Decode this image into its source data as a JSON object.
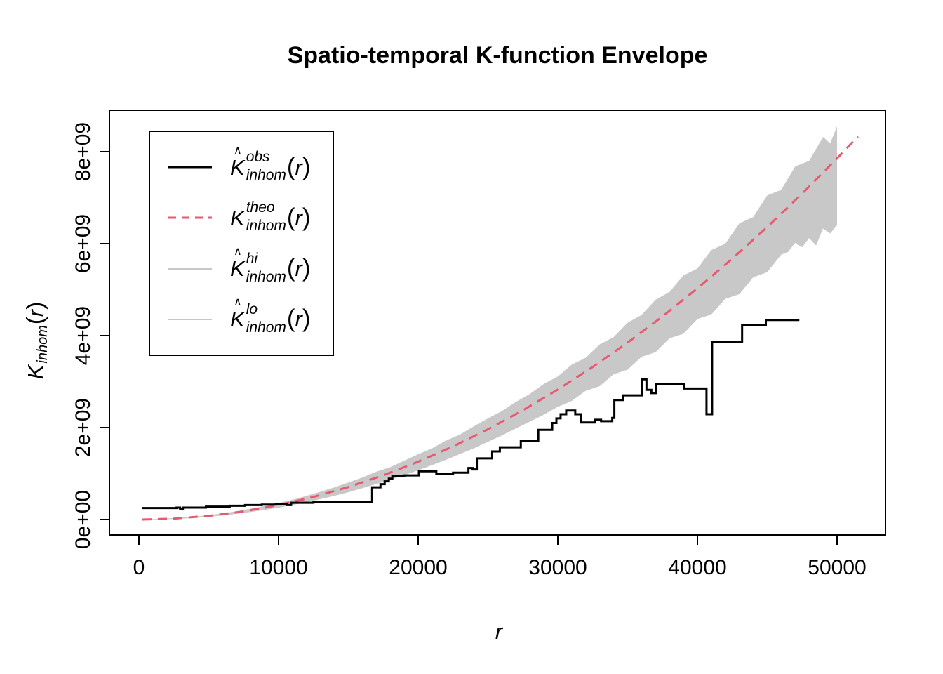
{
  "title": "Spatio-temporal K-function Envelope",
  "x_axis": {
    "label": "r",
    "tick_labels": [
      "0",
      "10000",
      "20000",
      "30000",
      "40000",
      "50000"
    ],
    "tick_values": [
      0,
      10000,
      20000,
      30000,
      40000,
      50000
    ]
  },
  "y_axis": {
    "label_k": "K",
    "label_sub": "inhom",
    "label_open": "(",
    "label_arg": "r",
    "label_close": ")",
    "tick_labels": [
      "0e+00",
      "2e+09",
      "4e+09",
      "6e+09",
      "8e+09"
    ],
    "tick_values_billions": [
      0,
      2,
      4,
      6,
      8
    ]
  },
  "legend": {
    "k_char": "K",
    "hat_char": "∧",
    "sub_label": "inhom",
    "open": "(",
    "arg": "r",
    "close": ")",
    "items": [
      {
        "sup": "obs",
        "hat": true,
        "color": "#000000",
        "dashed": false,
        "width": 3
      },
      {
        "sup": "theo",
        "hat": false,
        "color": "#E7596E",
        "dashed": true,
        "width": 3
      },
      {
        "sup": "hi",
        "hat": true,
        "color": "#C8C8C8",
        "dashed": false,
        "width": 2
      },
      {
        "sup": "lo",
        "hat": true,
        "color": "#C8C8C8",
        "dashed": false,
        "width": 2
      }
    ]
  },
  "chart_data": {
    "type": "line",
    "title": "Spatio-temporal K-function Envelope",
    "xlabel": "r",
    "ylabel": "K_inhom(r)",
    "grid": false,
    "legend_position": "top-left",
    "xlim": [
      -2100,
      53500
    ],
    "ylim": [
      -340000000,
      8900000000
    ],
    "y_scale": 1000000000,
    "band_color": "#C8C8C8",
    "series": [
      {
        "name": "obs",
        "style": "step",
        "color": "#000000",
        "width": 3,
        "points": [
          [
            250,
            0.25
          ],
          [
            2700,
            0.26
          ],
          [
            2950,
            0.23
          ],
          [
            3150,
            0.26
          ],
          [
            4800,
            0.28
          ],
          [
            6500,
            0.3
          ],
          [
            7600,
            0.315
          ],
          [
            8800,
            0.325
          ],
          [
            9800,
            0.34
          ],
          [
            10600,
            0.315
          ],
          [
            10900,
            0.365
          ],
          [
            12500,
            0.375
          ],
          [
            14000,
            0.38
          ],
          [
            15500,
            0.385
          ],
          [
            16700,
            0.7
          ],
          [
            17300,
            0.77
          ],
          [
            17600,
            0.83
          ],
          [
            17900,
            0.89
          ],
          [
            18150,
            0.94
          ],
          [
            19000,
            0.96
          ],
          [
            20050,
            1.05
          ],
          [
            21300,
            1.0
          ],
          [
            22500,
            1.02
          ],
          [
            23600,
            1.12
          ],
          [
            23900,
            1.09
          ],
          [
            24200,
            1.33
          ],
          [
            25300,
            1.48
          ],
          [
            25850,
            1.57
          ],
          [
            27350,
            1.71
          ],
          [
            28600,
            1.95
          ],
          [
            29600,
            2.1
          ],
          [
            29900,
            2.2
          ],
          [
            30200,
            2.29
          ],
          [
            30600,
            2.37
          ],
          [
            31250,
            2.29
          ],
          [
            31650,
            2.11
          ],
          [
            32650,
            2.17
          ],
          [
            33100,
            2.14
          ],
          [
            33900,
            2.21
          ],
          [
            34050,
            2.6
          ],
          [
            34650,
            2.7
          ],
          [
            36050,
            3.05
          ],
          [
            36350,
            2.82
          ],
          [
            36700,
            2.75
          ],
          [
            37050,
            2.95
          ],
          [
            39050,
            2.85
          ],
          [
            40650,
            2.29
          ],
          [
            41050,
            3.86
          ],
          [
            43200,
            4.23
          ],
          [
            44900,
            4.34
          ],
          [
            47300,
            4.34
          ]
        ]
      },
      {
        "name": "theo",
        "style": "dashed",
        "color": "#E7596E",
        "width": 3,
        "points": [
          [
            250,
            0.0002
          ],
          [
            2500,
            0.02
          ],
          [
            5000,
            0.079
          ],
          [
            7500,
            0.177
          ],
          [
            10000,
            0.314
          ],
          [
            12500,
            0.491
          ],
          [
            15000,
            0.707
          ],
          [
            17500,
            0.962
          ],
          [
            20000,
            1.257
          ],
          [
            22500,
            1.59
          ],
          [
            25000,
            1.963
          ],
          [
            27500,
            2.376
          ],
          [
            30000,
            2.827
          ],
          [
            32500,
            3.318
          ],
          [
            35000,
            3.848
          ],
          [
            37500,
            4.418
          ],
          [
            40000,
            5.027
          ],
          [
            42500,
            5.674
          ],
          [
            45000,
            6.362
          ],
          [
            47500,
            7.088
          ],
          [
            50000,
            7.854
          ],
          [
            51500,
            8.332
          ]
        ]
      },
      {
        "name": "hi",
        "style": "band-upper",
        "color": "#C8C8C8",
        "width": 2,
        "points": [
          [
            250,
            0.01
          ],
          [
            1000,
            0.012
          ],
          [
            2000,
            0.024
          ],
          [
            3000,
            0.04
          ],
          [
            4000,
            0.064
          ],
          [
            5000,
            0.094
          ],
          [
            6000,
            0.133
          ],
          [
            7000,
            0.18
          ],
          [
            8000,
            0.235
          ],
          [
            9000,
            0.295
          ],
          [
            10000,
            0.36
          ],
          [
            11000,
            0.43
          ],
          [
            12000,
            0.515
          ],
          [
            13000,
            0.605
          ],
          [
            14000,
            0.7
          ],
          [
            15000,
            0.805
          ],
          [
            16000,
            0.915
          ],
          [
            17000,
            1.04
          ],
          [
            18000,
            1.14
          ],
          [
            19000,
            1.28
          ],
          [
            20000,
            1.42
          ],
          [
            21000,
            1.55
          ],
          [
            22000,
            1.72
          ],
          [
            23000,
            1.85
          ],
          [
            24000,
            2.03
          ],
          [
            25000,
            2.2
          ],
          [
            26000,
            2.36
          ],
          [
            27000,
            2.56
          ],
          [
            28000,
            2.73
          ],
          [
            29000,
            2.95
          ],
          [
            30000,
            3.11
          ],
          [
            31000,
            3.37
          ],
          [
            32000,
            3.52
          ],
          [
            33000,
            3.81
          ],
          [
            34000,
            3.97
          ],
          [
            35000,
            4.28
          ],
          [
            36000,
            4.45
          ],
          [
            37000,
            4.78
          ],
          [
            38000,
            4.95
          ],
          [
            39000,
            5.31
          ],
          [
            40000,
            5.46
          ],
          [
            41000,
            5.86
          ],
          [
            42000,
            6.0
          ],
          [
            43000,
            6.44
          ],
          [
            44000,
            6.58
          ],
          [
            45000,
            7.05
          ],
          [
            46000,
            7.17
          ],
          [
            47000,
            7.68
          ],
          [
            48000,
            7.8
          ],
          [
            49000,
            8.32
          ],
          [
            49500,
            8.18
          ],
          [
            50000,
            8.55
          ]
        ]
      },
      {
        "name": "lo",
        "style": "band-lower",
        "color": "#C8C8C8",
        "width": 2,
        "points": [
          [
            250,
            0.005
          ],
          [
            1000,
            0.002
          ],
          [
            2000,
            0.007
          ],
          [
            3000,
            0.018
          ],
          [
            4000,
            0.037
          ],
          [
            5000,
            0.061
          ],
          [
            6000,
            0.088
          ],
          [
            7000,
            0.124
          ],
          [
            8000,
            0.164
          ],
          [
            9000,
            0.208
          ],
          [
            10000,
            0.257
          ],
          [
            11000,
            0.314
          ],
          [
            12000,
            0.376
          ],
          [
            13000,
            0.444
          ],
          [
            14000,
            0.516
          ],
          [
            15000,
            0.594
          ],
          [
            16000,
            0.682
          ],
          [
            17000,
            0.772
          ],
          [
            18000,
            0.862
          ],
          [
            19000,
            0.965
          ],
          [
            20000,
            1.07
          ],
          [
            21000,
            1.185
          ],
          [
            22000,
            1.3
          ],
          [
            23000,
            1.425
          ],
          [
            24000,
            1.55
          ],
          [
            25000,
            1.69
          ],
          [
            26000,
            1.83
          ],
          [
            27000,
            1.98
          ],
          [
            28000,
            2.13
          ],
          [
            29000,
            2.28
          ],
          [
            30000,
            2.45
          ],
          [
            31000,
            2.58
          ],
          [
            32000,
            2.8
          ],
          [
            33000,
            2.9
          ],
          [
            34000,
            3.16
          ],
          [
            35000,
            3.26
          ],
          [
            36000,
            3.54
          ],
          [
            37000,
            3.64
          ],
          [
            38000,
            3.94
          ],
          [
            39000,
            4.04
          ],
          [
            40000,
            4.36
          ],
          [
            41000,
            4.46
          ],
          [
            42000,
            4.8
          ],
          [
            43000,
            4.9
          ],
          [
            44000,
            5.27
          ],
          [
            45000,
            5.38
          ],
          [
            46000,
            5.76
          ],
          [
            46500,
            5.82
          ],
          [
            47000,
            6.02
          ],
          [
            47500,
            5.92
          ],
          [
            48000,
            6.12
          ],
          [
            48500,
            5.96
          ],
          [
            49000,
            6.33
          ],
          [
            49500,
            6.22
          ],
          [
            50000,
            6.4
          ]
        ]
      }
    ]
  }
}
